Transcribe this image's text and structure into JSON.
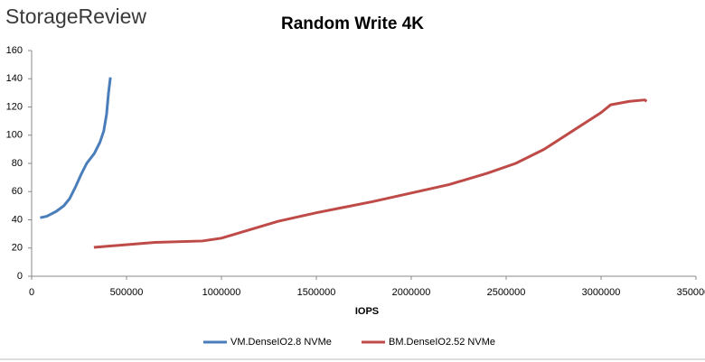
{
  "logo": "StorageReview",
  "chart_data": {
    "type": "line",
    "title": "Random Write 4K",
    "x_label": "IOPS",
    "xlim": [
      0,
      3500000
    ],
    "xticks": [
      0,
      500000,
      1000000,
      1500000,
      2000000,
      2500000,
      3000000,
      3500000
    ],
    "ylim": [
      0,
      160
    ],
    "yticks": [
      0,
      20,
      40,
      60,
      80,
      100,
      120,
      140,
      160
    ],
    "grid": false,
    "series": [
      {
        "name": "VM.DenseIO2.8 NVMe",
        "color": "#4a7ebb",
        "x": [
          45000,
          80000,
          130000,
          170000,
          200000,
          230000,
          260000,
          290000,
          330000,
          360000,
          380000,
          395000,
          405000,
          415000
        ],
        "values": [
          41.5,
          42.5,
          46,
          50,
          55,
          63,
          72,
          80,
          87,
          95,
          103,
          115,
          130,
          141
        ]
      },
      {
        "name": "BM.DenseIO2.52 NVMe",
        "color": "#be4b48",
        "x": [
          328000,
          650000,
          900000,
          1000000,
          1100000,
          1300000,
          1500000,
          1800000,
          2000000,
          2200000,
          2400000,
          2550000,
          2700000,
          2850000,
          3000000,
          3050000,
          3150000,
          3230000,
          3240000
        ],
        "values": [
          20.5,
          24,
          25,
          27,
          31,
          39,
          45,
          53,
          59,
          65,
          73,
          80,
          90,
          103,
          116,
          121.5,
          124,
          125,
          124
        ]
      }
    ]
  }
}
